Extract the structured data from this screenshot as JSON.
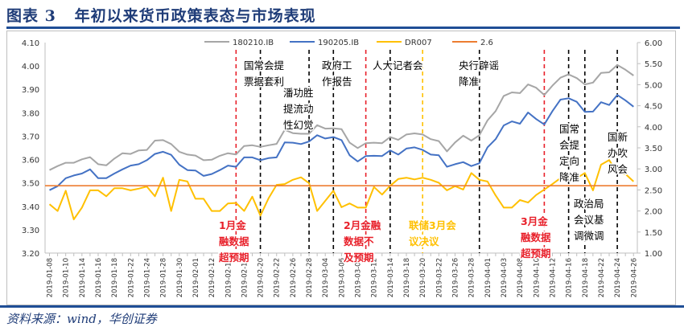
{
  "title": "图表 3   年初以来货币政策表态与市场表现",
  "source": "资料来源：wind，华创证券",
  "chart_data": {
    "type": "line",
    "title": "",
    "left_axis": {
      "ylim": [
        3.2,
        4.1
      ],
      "ticks": [
        "3.20",
        "3.30",
        "3.40",
        "3.50",
        "3.60",
        "3.70",
        "3.80",
        "3.90",
        "4.00",
        "4.10"
      ]
    },
    "right_axis": {
      "ylim": [
        1.0,
        6.0
      ],
      "ticks": [
        "1.00",
        "1.50",
        "2.00",
        "2.50",
        "3.00",
        "3.50",
        "4.00",
        "4.50",
        "5.00",
        "5.50",
        "6.00"
      ]
    },
    "grid": false,
    "legend_position": "top",
    "x": [
      "2019-01-08",
      "2019-01-09",
      "2019-01-10",
      "2019-01-11",
      "2019-01-14",
      "2019-01-15",
      "2019-01-16",
      "2019-01-17",
      "2019-01-18",
      "2019-01-21",
      "2019-01-22",
      "2019-01-23",
      "2019-01-24",
      "2019-01-25",
      "2019-01-28",
      "2019-01-29",
      "2019-01-30",
      "2019-01-31",
      "2019-02-01",
      "2019-02-11",
      "2019-02-12",
      "2019-02-13",
      "2019-02-14",
      "2019-02-15",
      "2019-02-18",
      "2019-02-19",
      "2019-02-20",
      "2019-02-21",
      "2019-02-22",
      "2019-02-25",
      "2019-02-26",
      "2019-02-27",
      "2019-02-28",
      "2019-03-01",
      "2019-03-04",
      "2019-03-05",
      "2019-03-06",
      "2019-03-07",
      "2019-03-08",
      "2019-03-11",
      "2019-03-12",
      "2019-03-13",
      "2019-03-14",
      "2019-03-15",
      "2019-03-18",
      "2019-03-19",
      "2019-03-20",
      "2019-03-21",
      "2019-03-22",
      "2019-03-25",
      "2019-03-26",
      "2019-03-27",
      "2019-03-28",
      "2019-03-29",
      "2019-04-01",
      "2019-04-02",
      "2019-04-03",
      "2019-04-04",
      "2019-04-08",
      "2019-04-09",
      "2019-04-10",
      "2019-04-11",
      "2019-04-12",
      "2019-04-15",
      "2019-04-16",
      "2019-04-17",
      "2019-04-18",
      "2019-04-19",
      "2019-04-22",
      "2019-04-23",
      "2019-04-24",
      "2019-04-25",
      "2019-04-26"
    ],
    "x_tick_labels": [
      "2019-01-08",
      "2019-01-10",
      "2019-01-14",
      "2019-01-16",
      "2019-01-18",
      "2019-01-22",
      "2019-01-24",
      "2019-01-28",
      "2019-01-30",
      "2019-02-01",
      "2019-02-12",
      "2019-02-14",
      "2019-02-18",
      "2019-02-20",
      "2019-02-22",
      "2019-02-26",
      "2019-02-28",
      "2019-03-04",
      "2019-03-06",
      "2019-03-08",
      "2019-03-12",
      "2019-03-14",
      "2019-03-18",
      "2019-03-20",
      "2019-03-22",
      "2019-03-26",
      "2019-03-28",
      "2019-04-01",
      "2019-04-03",
      "2019-04-08",
      "2019-04-10",
      "2019-04-12",
      "2019-04-16",
      "2019-04-18",
      "2019-04-22",
      "2019-04-24",
      "2019-04-26"
    ],
    "series": [
      {
        "name": "180210.IB",
        "axis": "left",
        "color": "#a6a6a6",
        "values": [
          3.555,
          3.572,
          3.586,
          3.586,
          3.601,
          3.61,
          3.58,
          3.575,
          3.604,
          3.627,
          3.624,
          3.639,
          3.641,
          3.681,
          3.683,
          3.666,
          3.633,
          3.621,
          3.617,
          3.597,
          3.599,
          3.616,
          3.627,
          3.622,
          3.658,
          3.661,
          3.654,
          3.661,
          3.667,
          3.727,
          3.713,
          3.71,
          3.71,
          3.747,
          3.732,
          3.733,
          3.73,
          3.672,
          3.649,
          3.67,
          3.672,
          3.67,
          3.696,
          3.684,
          3.707,
          3.712,
          3.707,
          3.687,
          3.679,
          3.635,
          3.673,
          3.702,
          3.681,
          3.704,
          3.767,
          3.807,
          3.872,
          3.887,
          3.884,
          3.921,
          3.907,
          3.876,
          3.916,
          3.95,
          3.964,
          3.948,
          3.921,
          3.929,
          3.97,
          3.973,
          4.004,
          3.984,
          3.959
        ]
      },
      {
        "name": "190205.IB",
        "axis": "left",
        "color": "#4472c4",
        "values": [
          3.469,
          3.486,
          3.52,
          3.532,
          3.54,
          3.558,
          3.52,
          3.52,
          3.54,
          3.558,
          3.574,
          3.58,
          3.597,
          3.624,
          3.633,
          3.62,
          3.578,
          3.555,
          3.553,
          3.53,
          3.538,
          3.555,
          3.574,
          3.569,
          3.609,
          3.609,
          3.597,
          3.606,
          3.609,
          3.673,
          3.672,
          3.666,
          3.677,
          3.704,
          3.69,
          3.696,
          3.683,
          3.618,
          3.592,
          3.615,
          3.616,
          3.615,
          3.639,
          3.621,
          3.647,
          3.652,
          3.641,
          3.621,
          3.618,
          3.569,
          3.58,
          3.589,
          3.572,
          3.584,
          3.652,
          3.687,
          3.746,
          3.763,
          3.753,
          3.801,
          3.773,
          3.75,
          3.807,
          3.856,
          3.862,
          3.847,
          3.804,
          3.805,
          3.845,
          3.833,
          3.876,
          3.853,
          3.826
        ]
      },
      {
        "name": "DR007",
        "axis": "right",
        "color": "#ffc000",
        "values": [
          2.16,
          2.0,
          2.48,
          1.8,
          2.08,
          2.49,
          2.49,
          2.35,
          2.54,
          2.54,
          2.49,
          2.53,
          2.58,
          2.35,
          2.79,
          2.0,
          2.74,
          2.7,
          2.29,
          2.29,
          2.0,
          2.0,
          2.18,
          2.19,
          2.0,
          2.34,
          1.89,
          2.3,
          2.62,
          2.64,
          2.74,
          2.8,
          2.66,
          2.0,
          2.24,
          2.48,
          2.09,
          2.18,
          2.08,
          2.08,
          2.57,
          2.39,
          2.6,
          2.76,
          2.79,
          2.75,
          2.79,
          2.74,
          2.67,
          2.49,
          2.59,
          2.51,
          2.9,
          2.74,
          2.7,
          2.37,
          2.08,
          2.08,
          2.26,
          2.2,
          2.38,
          2.51,
          2.64,
          2.78,
          2.79,
          2.78,
          2.9,
          2.49,
          3.1,
          3.21,
          2.9,
          2.88,
          2.7
        ]
      },
      {
        "name": "2.6",
        "axis": "right",
        "color": "#ed7d31",
        "constant": 2.6
      }
    ],
    "annotations": [
      {
        "date": "2019-02-15",
        "color": "#e8202a",
        "lines": [
          "1月金",
          "融数据",
          "超预期"
        ]
      },
      {
        "date": "2019-02-20",
        "color": "#000000",
        "lines": [
          "国常会提",
          "票据套利"
        ]
      },
      {
        "date": "2019-02-28",
        "color": "#000000",
        "lines": [
          "潘功胜",
          "提流动",
          "性幻觉"
        ]
      },
      {
        "date": "2019-03-05",
        "color": "#000000",
        "lines": [
          "政府工",
          "作报告"
        ]
      },
      {
        "date": "2019-03-11",
        "color": "#e8202a",
        "lines": [
          "2月金融",
          "数据不",
          "及预期"
        ]
      },
      {
        "date": "2019-03-14",
        "color": "#000000",
        "lines": [
          "人大记者会"
        ]
      },
      {
        "date": "2019-03-20",
        "color": "#ffc000",
        "lines": [
          "联储3月会",
          "议决议"
        ]
      },
      {
        "date": "2019-03-29",
        "color": "#000000",
        "lines": [
          "央行辟谣",
          "降准"
        ]
      },
      {
        "date": "2019-04-11",
        "color": "#e8202a",
        "lines": [
          "3月金",
          "融数据",
          "超预期"
        ]
      },
      {
        "date": "2019-04-16",
        "color": "#000000",
        "lines": [
          "国常",
          "会提",
          "定向",
          "降准"
        ]
      },
      {
        "date": "2019-04-18",
        "color": "#000000",
        "lines": [
          "政治局",
          "会议基",
          "调微调"
        ]
      },
      {
        "date": "2019-04-24",
        "color": "#000000",
        "lines": [
          "国新",
          "办吹",
          "风会"
        ]
      }
    ]
  }
}
